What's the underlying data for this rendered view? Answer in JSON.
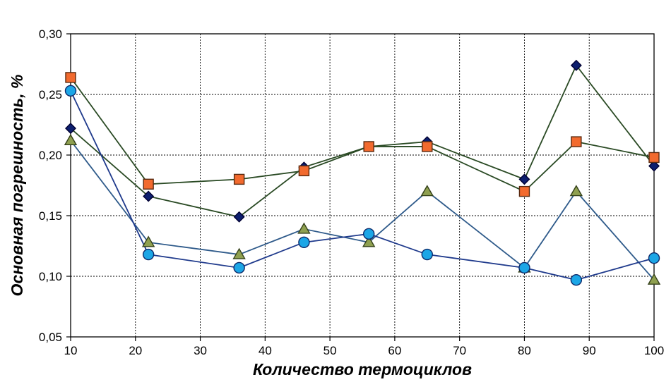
{
  "chart_data": {
    "type": "line",
    "title": "",
    "xlabel": "Количество термоциклов",
    "ylabel": "Основная погрешность, %",
    "xlim": [
      10,
      100
    ],
    "ylim": [
      0.05,
      0.3
    ],
    "x_ticks": [
      10,
      20,
      30,
      40,
      50,
      60,
      70,
      80,
      90,
      100
    ],
    "x_tick_labels": [
      "10",
      "20",
      "30",
      "40",
      "50",
      "60",
      "70",
      "80",
      "90",
      "100"
    ],
    "y_ticks": [
      0.05,
      0.1,
      0.15,
      0.2,
      0.25,
      0.3
    ],
    "y_tick_labels": [
      "0,05",
      "0,10",
      "0,15",
      "0,20",
      "0,25",
      "0,30"
    ],
    "grid": true,
    "legend": "none",
    "x": [
      10,
      22,
      36,
      46,
      56,
      65,
      80,
      88,
      100
    ],
    "series": [
      {
        "marker": "diamond",
        "line_color": "#2a4a24",
        "marker_fill": "#0d1f6e",
        "marker_stroke": "#000033",
        "values": [
          0.222,
          0.166,
          0.149,
          0.19,
          0.207,
          0.211,
          0.18,
          0.274,
          0.191
        ]
      },
      {
        "marker": "square",
        "line_color": "#2a4a24",
        "marker_fill": "#f26a2e",
        "marker_stroke": "#5a2a10",
        "values": [
          0.264,
          0.176,
          0.18,
          0.187,
          0.207,
          0.207,
          0.17,
          0.211,
          0.198
        ]
      },
      {
        "marker": "triangle",
        "line_color": "#2e5a8a",
        "marker_fill": "#8fa050",
        "marker_stroke": "#34401a",
        "values": [
          0.212,
          0.128,
          0.118,
          0.139,
          0.128,
          0.17,
          0.107,
          0.17,
          0.097
        ]
      },
      {
        "marker": "circle",
        "line_color": "#1f3a8c",
        "marker_fill": "#1ca6e6",
        "marker_stroke": "#0d2a6a",
        "values": [
          0.253,
          0.118,
          0.107,
          0.128,
          0.135,
          0.118,
          0.107,
          0.097,
          0.115
        ]
      }
    ]
  }
}
